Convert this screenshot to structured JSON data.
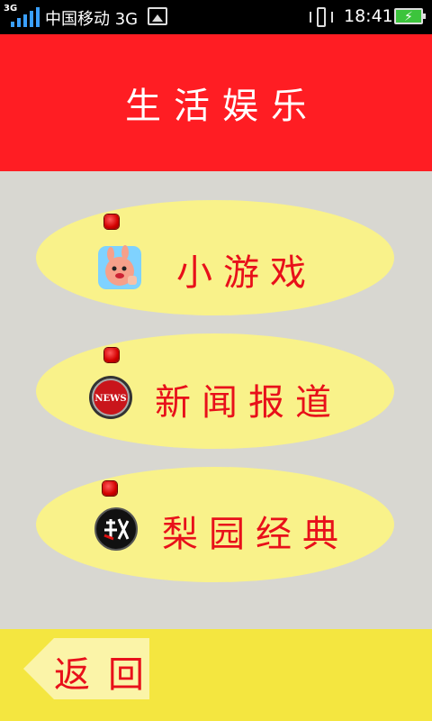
{
  "status_bar": {
    "network_small": "3G",
    "carrier": "中国移动 3G",
    "time": "18:41",
    "icons": [
      "signal-icon",
      "gallery-icon",
      "vibrate-icon",
      "battery-charging-icon"
    ]
  },
  "header": {
    "title": "生活娱乐",
    "background": "#ff1d23"
  },
  "menu": {
    "items": [
      {
        "label": "小游戏",
        "icon": "game-app-icon"
      },
      {
        "label": "新闻报道",
        "icon": "news-icon"
      },
      {
        "label": "梨园经典",
        "icon": "opera-icon"
      }
    ],
    "item_color": "#f9f28a",
    "text_color": "#e8101a"
  },
  "footer": {
    "back_label": "返回",
    "background": "#f4e640"
  }
}
